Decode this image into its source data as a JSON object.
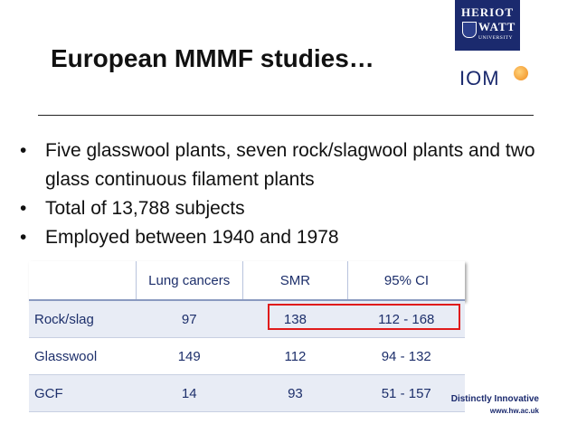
{
  "slide": {
    "title": "European MMMF studies…",
    "bullets": [
      "Five glasswool plants, seven rock/slagwool plants and two glass continuous filament plants",
      "Total of 13,788 subjects",
      "Employed between 1940 and 1978"
    ],
    "bullet_glyph": "•"
  },
  "logos": {
    "heriot_watt": {
      "line1": "HERIOT",
      "line2": "WATT",
      "line3": "UNIVERSITY",
      "color": "#1b2a6e"
    },
    "iom": {
      "text": "IOM",
      "color": "#1b2a6e",
      "dot_color": "#f08a1c"
    }
  },
  "table": {
    "headers": [
      "",
      "Lung cancers",
      "SMR",
      "95% CI"
    ],
    "rows": [
      [
        "Rock/slag",
        "97",
        "138",
        "112 - 168"
      ],
      [
        "Glasswool",
        "149",
        "112",
        "94 - 132"
      ],
      [
        "GCF",
        "14",
        "93",
        "51 - 157"
      ]
    ],
    "highlight_color": "#e01b1b",
    "text_color": "#1d2f6b"
  },
  "footer": {
    "tagline": "Distinctly Innovative",
    "url": "www.hw.ac.uk"
  }
}
